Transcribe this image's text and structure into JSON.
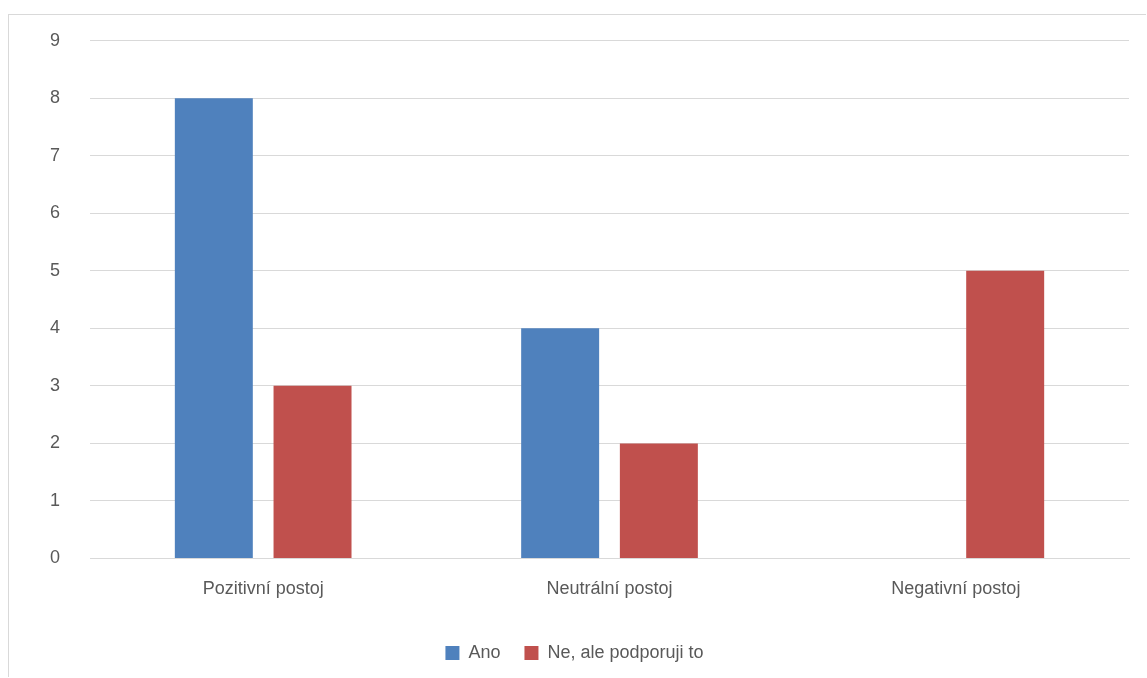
{
  "chart_data": {
    "type": "bar",
    "categories": [
      "Pozitivní postoj",
      "Neutrální postoj",
      "Negativní postoj"
    ],
    "series": [
      {
        "name": "Ano",
        "color": "#4f81bd",
        "values": [
          8,
          4,
          0
        ]
      },
      {
        "name": "Ne, ale podporuji to",
        "color": "#c0504d",
        "values": [
          3,
          2,
          5
        ]
      }
    ],
    "ylim": [
      0,
      9
    ],
    "yticks": [
      0,
      1,
      2,
      3,
      4,
      5,
      6,
      7,
      8,
      9
    ],
    "grid": "y",
    "legend": "bottom"
  }
}
